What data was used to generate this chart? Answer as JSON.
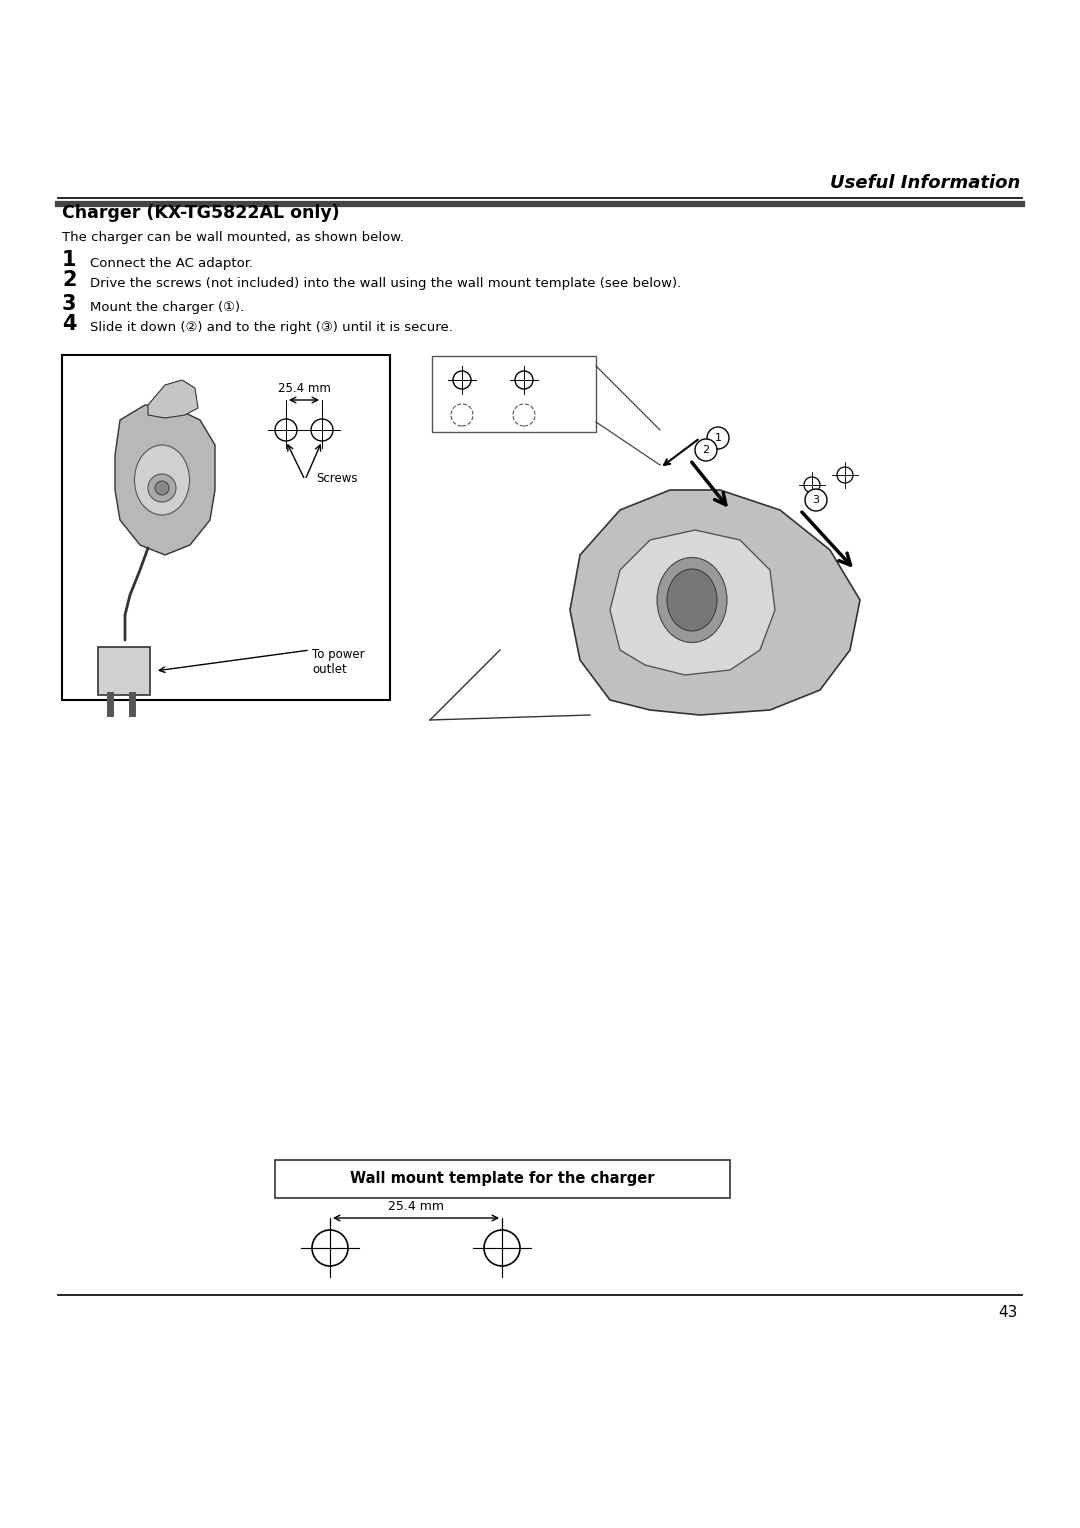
{
  "bg_color": "#ffffff",
  "page_width": 10.8,
  "page_height": 15.28,
  "header_text": "Useful Information",
  "section_title": "Charger (KX-TG5822AL only)",
  "subtitle": "The charger can be wall mounted, as shown below.",
  "steps": [
    {
      "num": "1",
      "text": "Connect the AC adaptor."
    },
    {
      "num": "2",
      "text": "Drive the screws (not included) into the wall using the wall mount template (see below)."
    },
    {
      "num": "3",
      "text": "Mount the charger (①)."
    },
    {
      "num": "4",
      "text": "Slide it down (②) and to the right (③) until it is secure."
    }
  ],
  "wall_mount_label": "Wall mount template for the charger",
  "wall_mount_dim": "25.4 mm",
  "left_diagram_dim": "25.4 mm",
  "screws_label": "Screws",
  "power_label": "To power\noutlet",
  "footer_page": "43"
}
